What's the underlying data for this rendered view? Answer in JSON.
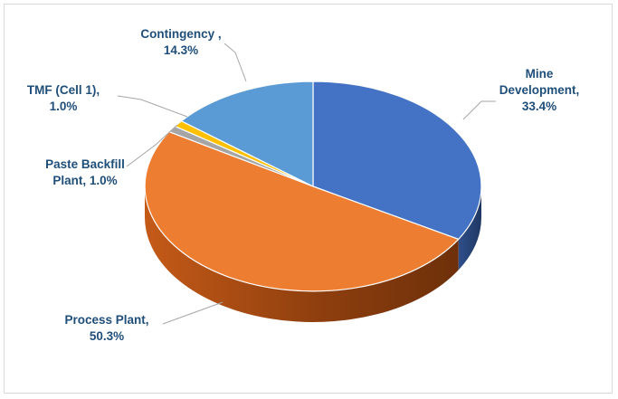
{
  "chart_data": {
    "type": "pie",
    "title": "",
    "style": "3d",
    "slices": [
      {
        "label_lines": [
          "Mine",
          "Development,",
          "33.4%"
        ],
        "name": "Mine Development",
        "value": 33.4,
        "color": "#4472c4"
      },
      {
        "label_lines": [
          "Process Plant,",
          "50.3%"
        ],
        "name": "Process Plant",
        "value": 50.3,
        "color": "#ed7d31"
      },
      {
        "label_lines": [
          "Paste Backfill",
          "Plant, 1.0%"
        ],
        "name": "Paste Backfill Plant",
        "value": 1.0,
        "color": "#a5a5a5"
      },
      {
        "label_lines": [
          "TMF (Cell 1),",
          "1.0%"
        ],
        "name": "TMF (Cell 1)",
        "value": 1.0,
        "color": "#ffc000"
      },
      {
        "label_lines": [
          "Contingency ,",
          "14.3%"
        ],
        "name": "Contingency",
        "value": 14.3,
        "color": "#5b9bd5"
      }
    ],
    "label_color": "#1f4e79",
    "leader_line_color": "#a6a6a6"
  }
}
